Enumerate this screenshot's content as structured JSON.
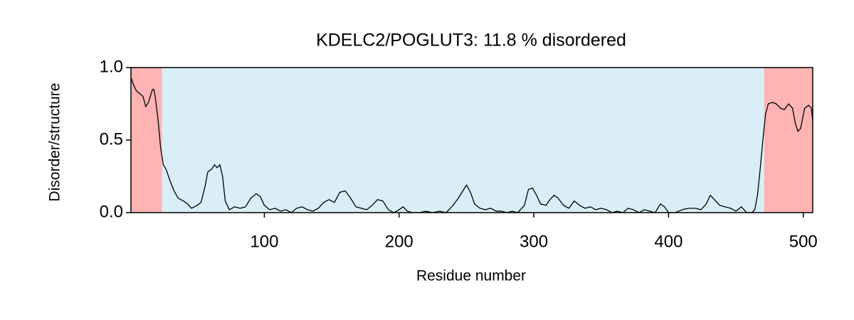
{
  "chart_data": {
    "type": "line",
    "title": "KDELC2/POGLUT3: 11.8 % disordered",
    "xlabel": "Residue number",
    "ylabel": "Disorder/structure",
    "xlim": [
      1,
      507
    ],
    "ylim": [
      0,
      1
    ],
    "xticks": [
      100,
      200,
      300,
      400,
      500
    ],
    "yticks": [
      {
        "value": 0,
        "label": "0.0"
      },
      0.5,
      {
        "value": 1,
        "label": "1.0"
      }
    ],
    "grid": false,
    "regions": [
      {
        "start": 1,
        "end": 24,
        "color": "#ffb3b3"
      },
      {
        "start": 24,
        "end": 471,
        "color": "#d9eef7"
      },
      {
        "start": 471,
        "end": 507,
        "color": "#ffb3b3"
      }
    ],
    "x": [
      1,
      3,
      5,
      10,
      12,
      14,
      16,
      17,
      18,
      19,
      21,
      23,
      25,
      27,
      30,
      33,
      36,
      40,
      43,
      46,
      50,
      53,
      56,
      58,
      61,
      63,
      65,
      67,
      69,
      71,
      74,
      78,
      82,
      86,
      90,
      94,
      97,
      100,
      104,
      108,
      112,
      116,
      120,
      124,
      128,
      132,
      136,
      140,
      144,
      148,
      152,
      156,
      160,
      164,
      168,
      172,
      176,
      180,
      184,
      188,
      192,
      196,
      200,
      203,
      206,
      210,
      215,
      220,
      225,
      230,
      235,
      240,
      244,
      248,
      250,
      253,
      256,
      260,
      264,
      268,
      272,
      276,
      280,
      284,
      288,
      290,
      293,
      296,
      299,
      302,
      305,
      309,
      312,
      315,
      318,
      322,
      326,
      330,
      334,
      338,
      342,
      346,
      350,
      354,
      358,
      362,
      366,
      370,
      374,
      378,
      382,
      386,
      390,
      394,
      397,
      400,
      405,
      410,
      415,
      420,
      424,
      428,
      431,
      434,
      438,
      442,
      446,
      450,
      454,
      458,
      462,
      464,
      466,
      468,
      470,
      472,
      474,
      477,
      480,
      483,
      486,
      489,
      492,
      494,
      496,
      498,
      501,
      504,
      506,
      507
    ],
    "series": [
      {
        "color": "#000000",
        "values": [
          0.93,
          0.88,
          0.84,
          0.8,
          0.73,
          0.76,
          0.82,
          0.85,
          0.85,
          0.8,
          0.65,
          0.45,
          0.33,
          0.3,
          0.22,
          0.15,
          0.1,
          0.08,
          0.06,
          0.03,
          0.05,
          0.07,
          0.18,
          0.28,
          0.3,
          0.33,
          0.31,
          0.33,
          0.25,
          0.08,
          0.02,
          0.04,
          0.03,
          0.04,
          0.1,
          0.13,
          0.11,
          0.05,
          0.02,
          0.03,
          0.01,
          0.02,
          0.0,
          0.03,
          0.04,
          0.02,
          0.01,
          0.03,
          0.07,
          0.09,
          0.07,
          0.14,
          0.15,
          0.1,
          0.04,
          0.03,
          0.02,
          0.05,
          0.09,
          0.08,
          0.02,
          0.0,
          0.02,
          0.04,
          0.01,
          0.0,
          0.0,
          0.01,
          0.0,
          0.01,
          0.0,
          0.05,
          0.1,
          0.16,
          0.19,
          0.14,
          0.06,
          0.03,
          0.02,
          0.03,
          0.01,
          0.01,
          0.0,
          0.01,
          0.0,
          0.02,
          0.05,
          0.16,
          0.17,
          0.12,
          0.06,
          0.05,
          0.09,
          0.12,
          0.1,
          0.05,
          0.03,
          0.08,
          0.05,
          0.03,
          0.04,
          0.02,
          0.03,
          0.02,
          0.0,
          0.01,
          0.0,
          0.03,
          0.02,
          0.0,
          0.02,
          0.01,
          0.0,
          0.06,
          0.04,
          0.0,
          0.0,
          0.02,
          0.03,
          0.03,
          0.02,
          0.06,
          0.12,
          0.09,
          0.05,
          0.04,
          0.03,
          0.01,
          0.04,
          0.0,
          0.0,
          0.02,
          0.12,
          0.3,
          0.5,
          0.68,
          0.75,
          0.76,
          0.75,
          0.72,
          0.71,
          0.75,
          0.72,
          0.62,
          0.56,
          0.58,
          0.72,
          0.74,
          0.72,
          0.63
        ]
      }
    ]
  }
}
